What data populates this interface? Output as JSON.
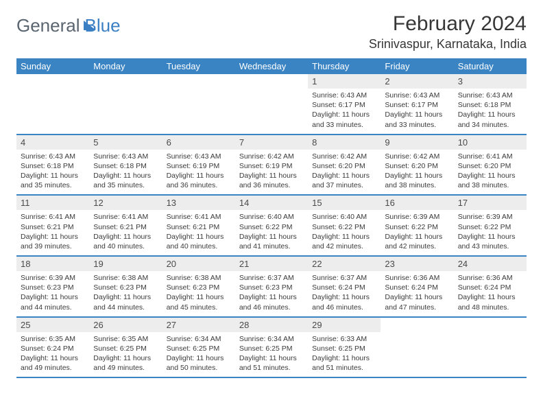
{
  "brand": {
    "name_a": "General",
    "name_b": "Blue"
  },
  "title": "February 2024",
  "location": "Srinivaspur, Karnataka, India",
  "header_bg": "#3b84c4",
  "divider_color": "#3b84c4",
  "daynum_bg": "#ededed",
  "dow": [
    "Sunday",
    "Monday",
    "Tuesday",
    "Wednesday",
    "Thursday",
    "Friday",
    "Saturday"
  ],
  "weeks": [
    [
      null,
      null,
      null,
      null,
      {
        "n": "1",
        "sr": "6:43 AM",
        "ss": "6:17 PM",
        "dl": "11 hours and 33 minutes."
      },
      {
        "n": "2",
        "sr": "6:43 AM",
        "ss": "6:17 PM",
        "dl": "11 hours and 33 minutes."
      },
      {
        "n": "3",
        "sr": "6:43 AM",
        "ss": "6:18 PM",
        "dl": "11 hours and 34 minutes."
      }
    ],
    [
      {
        "n": "4",
        "sr": "6:43 AM",
        "ss": "6:18 PM",
        "dl": "11 hours and 35 minutes."
      },
      {
        "n": "5",
        "sr": "6:43 AM",
        "ss": "6:18 PM",
        "dl": "11 hours and 35 minutes."
      },
      {
        "n": "6",
        "sr": "6:43 AM",
        "ss": "6:19 PM",
        "dl": "11 hours and 36 minutes."
      },
      {
        "n": "7",
        "sr": "6:42 AM",
        "ss": "6:19 PM",
        "dl": "11 hours and 36 minutes."
      },
      {
        "n": "8",
        "sr": "6:42 AM",
        "ss": "6:20 PM",
        "dl": "11 hours and 37 minutes."
      },
      {
        "n": "9",
        "sr": "6:42 AM",
        "ss": "6:20 PM",
        "dl": "11 hours and 38 minutes."
      },
      {
        "n": "10",
        "sr": "6:41 AM",
        "ss": "6:20 PM",
        "dl": "11 hours and 38 minutes."
      }
    ],
    [
      {
        "n": "11",
        "sr": "6:41 AM",
        "ss": "6:21 PM",
        "dl": "11 hours and 39 minutes."
      },
      {
        "n": "12",
        "sr": "6:41 AM",
        "ss": "6:21 PM",
        "dl": "11 hours and 40 minutes."
      },
      {
        "n": "13",
        "sr": "6:41 AM",
        "ss": "6:21 PM",
        "dl": "11 hours and 40 minutes."
      },
      {
        "n": "14",
        "sr": "6:40 AM",
        "ss": "6:22 PM",
        "dl": "11 hours and 41 minutes."
      },
      {
        "n": "15",
        "sr": "6:40 AM",
        "ss": "6:22 PM",
        "dl": "11 hours and 42 minutes."
      },
      {
        "n": "16",
        "sr": "6:39 AM",
        "ss": "6:22 PM",
        "dl": "11 hours and 42 minutes."
      },
      {
        "n": "17",
        "sr": "6:39 AM",
        "ss": "6:22 PM",
        "dl": "11 hours and 43 minutes."
      }
    ],
    [
      {
        "n": "18",
        "sr": "6:39 AM",
        "ss": "6:23 PM",
        "dl": "11 hours and 44 minutes."
      },
      {
        "n": "19",
        "sr": "6:38 AM",
        "ss": "6:23 PM",
        "dl": "11 hours and 44 minutes."
      },
      {
        "n": "20",
        "sr": "6:38 AM",
        "ss": "6:23 PM",
        "dl": "11 hours and 45 minutes."
      },
      {
        "n": "21",
        "sr": "6:37 AM",
        "ss": "6:23 PM",
        "dl": "11 hours and 46 minutes."
      },
      {
        "n": "22",
        "sr": "6:37 AM",
        "ss": "6:24 PM",
        "dl": "11 hours and 46 minutes."
      },
      {
        "n": "23",
        "sr": "6:36 AM",
        "ss": "6:24 PM",
        "dl": "11 hours and 47 minutes."
      },
      {
        "n": "24",
        "sr": "6:36 AM",
        "ss": "6:24 PM",
        "dl": "11 hours and 48 minutes."
      }
    ],
    [
      {
        "n": "25",
        "sr": "6:35 AM",
        "ss": "6:24 PM",
        "dl": "11 hours and 49 minutes."
      },
      {
        "n": "26",
        "sr": "6:35 AM",
        "ss": "6:25 PM",
        "dl": "11 hours and 49 minutes."
      },
      {
        "n": "27",
        "sr": "6:34 AM",
        "ss": "6:25 PM",
        "dl": "11 hours and 50 minutes."
      },
      {
        "n": "28",
        "sr": "6:34 AM",
        "ss": "6:25 PM",
        "dl": "11 hours and 51 minutes."
      },
      {
        "n": "29",
        "sr": "6:33 AM",
        "ss": "6:25 PM",
        "dl": "11 hours and 51 minutes."
      },
      null,
      null
    ]
  ],
  "labels": {
    "sunrise": "Sunrise:",
    "sunset": "Sunset:",
    "daylight": "Daylight:"
  }
}
